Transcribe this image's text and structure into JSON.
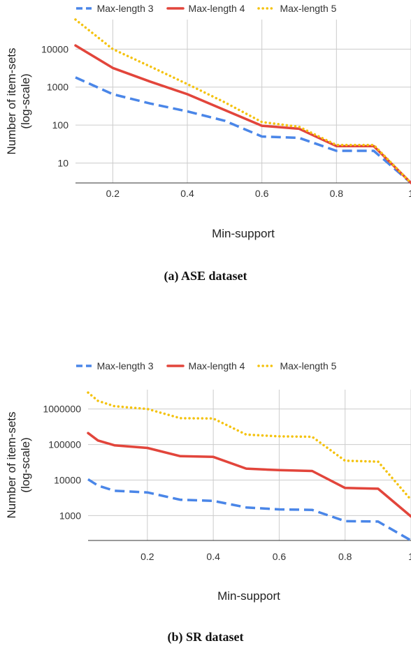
{
  "colors": {
    "max3": "#4a86e8",
    "max4": "#e2453b",
    "max5": "#f4c20d",
    "grid": "#cccccc"
  },
  "chart_data": [
    {
      "type": "line",
      "caption": "(a) ASE dataset",
      "xlabel": "Min-support",
      "ylabel_line1": "Number of item-sets",
      "ylabel_line2": "(log-scale)",
      "ylog": true,
      "xlim": [
        0.1,
        1.0
      ],
      "ylim": [
        3,
        60000
      ],
      "xticks": [
        0.2,
        0.4,
        0.6,
        0.8,
        1
      ],
      "xtick_labels": [
        "0.2",
        "0.4",
        "0.6",
        "0.8",
        "1"
      ],
      "yticks": [
        10,
        100,
        1000,
        10000
      ],
      "ytick_labels": [
        "10",
        "100",
        "1000",
        "10000"
      ],
      "legend_position": "top",
      "series": [
        {
          "name": "Max-length 3",
          "color_key": "max3",
          "style": "dashed",
          "x": [
            0.1,
            0.2,
            0.3,
            0.4,
            0.5,
            0.6,
            0.7,
            0.8,
            0.9,
            1.0
          ],
          "y": [
            1800,
            650,
            370,
            230,
            130,
            50,
            46,
            21,
            21,
            3
          ]
        },
        {
          "name": "Max-length 4",
          "color_key": "max4",
          "style": "solid",
          "x": [
            0.1,
            0.2,
            0.3,
            0.4,
            0.5,
            0.6,
            0.7,
            0.8,
            0.9,
            1.0
          ],
          "y": [
            12500,
            3200,
            1400,
            650,
            250,
            96,
            80,
            28,
            28,
            3
          ]
        },
        {
          "name": "Max-length 5",
          "color_key": "max5",
          "style": "dotted",
          "x": [
            0.1,
            0.2,
            0.3,
            0.4,
            0.5,
            0.6,
            0.7,
            0.8,
            0.9,
            1.0
          ],
          "y": [
            60000,
            10000,
            3500,
            1200,
            400,
            120,
            90,
            30,
            30,
            3
          ]
        }
      ]
    },
    {
      "type": "line",
      "caption": "(b) SR dataset",
      "xlabel": "Min-support",
      "ylabel_line1": "Number of item-sets",
      "ylabel_line2": "(log-scale)",
      "ylog": true,
      "xlim": [
        0.02,
        1.0
      ],
      "ylim": [
        200,
        3500000
      ],
      "xticks": [
        0.2,
        0.4,
        0.6,
        0.8,
        1
      ],
      "xtick_labels": [
        "0.2",
        "0.4",
        "0.6",
        "0.8",
        "1"
      ],
      "yticks": [
        1000,
        10000,
        100000,
        1000000
      ],
      "ytick_labels": [
        "1000",
        "10000",
        "100000",
        "1000000"
      ],
      "legend_position": "top",
      "series": [
        {
          "name": "Max-length 3",
          "color_key": "max3",
          "style": "dashed",
          "x": [
            0.02,
            0.05,
            0.1,
            0.2,
            0.3,
            0.4,
            0.5,
            0.6,
            0.7,
            0.8,
            0.9,
            1.0
          ],
          "y": [
            10500,
            7000,
            5000,
            4500,
            2800,
            2600,
            1700,
            1500,
            1450,
            700,
            680,
            200
          ]
        },
        {
          "name": "Max-length 4",
          "color_key": "max4",
          "style": "solid",
          "x": [
            0.02,
            0.05,
            0.1,
            0.2,
            0.3,
            0.4,
            0.5,
            0.6,
            0.7,
            0.8,
            0.9,
            1.0
          ],
          "y": [
            210000,
            130000,
            95000,
            80000,
            47000,
            45000,
            21000,
            19000,
            18000,
            6000,
            5700,
            950
          ]
        },
        {
          "name": "Max-length 5",
          "color_key": "max5",
          "style": "dotted",
          "x": [
            0.02,
            0.05,
            0.1,
            0.2,
            0.3,
            0.4,
            0.5,
            0.6,
            0.7,
            0.8,
            0.9,
            1.0
          ],
          "y": [
            2900000,
            1700000,
            1200000,
            1000000,
            550000,
            540000,
            190000,
            170000,
            165000,
            35000,
            33000,
            2800
          ]
        }
      ]
    }
  ]
}
